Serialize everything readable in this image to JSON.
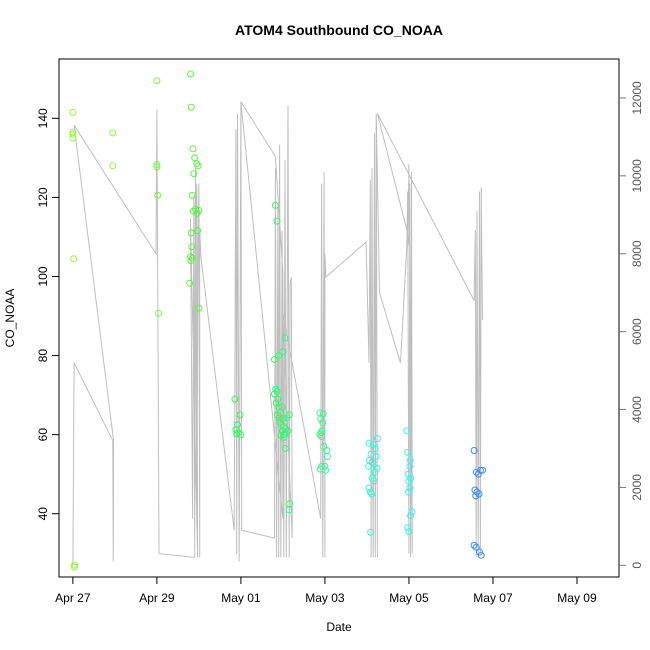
{
  "chart_data": {
    "type": "scatter",
    "title": "ATOM4 Southbound CO_NOAA",
    "xlabel": "Date",
    "ylabel": "CO_NOAA",
    "x_ticks": [
      "Apr 27",
      "Apr 29",
      "May 01",
      "May 03",
      "May 05",
      "May 07",
      "May 09"
    ],
    "y_ticks": [
      "40",
      "60",
      "80",
      "100",
      "120",
      "140"
    ],
    "y2_ticks": [
      "0",
      "2000",
      "4000",
      "6000",
      "8000",
      "10000",
      "12000"
    ],
    "xlim": [
      -0.33,
      13.0
    ],
    "ylim": [
      24,
      155
    ],
    "y2lim": [
      -300,
      13000
    ],
    "grid": false,
    "line_color": "#bebebe",
    "points": [
      {
        "x": 0.0,
        "y": 141.5,
        "c": "#9cf53b"
      },
      {
        "x": 0.0,
        "y": 136.5,
        "c": "#9cf53b"
      },
      {
        "x": 0.0,
        "y": 136.0,
        "c": "#9cf53b"
      },
      {
        "x": 0.0,
        "y": 135.0,
        "c": "#9cf53b"
      },
      {
        "x": 0.02,
        "y": 104.5,
        "c": "#9cf53b"
      },
      {
        "x": 0.04,
        "y": 27.0,
        "c": "#9cf53b"
      },
      {
        "x": 0.04,
        "y": 26.5,
        "c": "#9cf53b"
      },
      {
        "x": 0.95,
        "y": 136.3,
        "c": "#8ff53b"
      },
      {
        "x": 0.95,
        "y": 128.0,
        "c": "#8ff53b"
      },
      {
        "x": 2.0,
        "y": 149.5,
        "c": "#7af53b"
      },
      {
        "x": 2.0,
        "y": 128.3,
        "c": "#7af53b"
      },
      {
        "x": 2.0,
        "y": 127.7,
        "c": "#7af53b"
      },
      {
        "x": 2.02,
        "y": 120.5,
        "c": "#7af53b"
      },
      {
        "x": 2.04,
        "y": 90.7,
        "c": "#7af53b"
      },
      {
        "x": 2.8,
        "y": 151.2,
        "c": "#5af53b"
      },
      {
        "x": 2.82,
        "y": 142.8,
        "c": "#5af53b"
      },
      {
        "x": 2.86,
        "y": 132.3,
        "c": "#5af53b"
      },
      {
        "x": 2.9,
        "y": 130.0,
        "c": "#5af53b"
      },
      {
        "x": 2.95,
        "y": 128.5,
        "c": "#5af53b"
      },
      {
        "x": 2.98,
        "y": 128.0,
        "c": "#5af53b"
      },
      {
        "x": 2.88,
        "y": 126.0,
        "c": "#5af53b"
      },
      {
        "x": 2.84,
        "y": 120.5,
        "c": "#5af53b"
      },
      {
        "x": 2.92,
        "y": 117.0,
        "c": "#5af53b"
      },
      {
        "x": 2.87,
        "y": 116.5,
        "c": "#5af53b"
      },
      {
        "x": 2.96,
        "y": 116.0,
        "c": "#5af53b"
      },
      {
        "x": 3.0,
        "y": 116.7,
        "c": "#5af53b"
      },
      {
        "x": 2.82,
        "y": 111.0,
        "c": "#5af53b"
      },
      {
        "x": 2.97,
        "y": 111.6,
        "c": "#5af53b"
      },
      {
        "x": 2.83,
        "y": 107.5,
        "c": "#5af53b"
      },
      {
        "x": 2.8,
        "y": 105.0,
        "c": "#5af53b"
      },
      {
        "x": 2.84,
        "y": 104.6,
        "c": "#5af53b"
      },
      {
        "x": 2.81,
        "y": 104.0,
        "c": "#5af53b"
      },
      {
        "x": 2.78,
        "y": 98.3,
        "c": "#5af53b"
      },
      {
        "x": 3.0,
        "y": 92.0,
        "c": "#5af53b"
      },
      {
        "x": 3.86,
        "y": 69.0,
        "c": "#3bf55e"
      },
      {
        "x": 3.98,
        "y": 65.0,
        "c": "#3bf55e"
      },
      {
        "x": 3.92,
        "y": 62.5,
        "c": "#3bf55e"
      },
      {
        "x": 3.88,
        "y": 61.3,
        "c": "#3bf55e"
      },
      {
        "x": 3.95,
        "y": 60.5,
        "c": "#3bf55e"
      },
      {
        "x": 4.0,
        "y": 60.0,
        "c": "#3bf55e"
      },
      {
        "x": 3.9,
        "y": 60.2,
        "c": "#3bf55e"
      },
      {
        "x": 4.82,
        "y": 118.0,
        "c": "#3bf56a"
      },
      {
        "x": 4.86,
        "y": 114.0,
        "c": "#3bf56a"
      },
      {
        "x": 4.9,
        "y": 80.0,
        "c": "#3bf56a"
      },
      {
        "x": 4.8,
        "y": 79.0,
        "c": "#3bf56a"
      },
      {
        "x": 4.83,
        "y": 71.5,
        "c": "#3bf56a"
      },
      {
        "x": 4.86,
        "y": 71.0,
        "c": "#3bf56a"
      },
      {
        "x": 4.8,
        "y": 70.3,
        "c": "#3bf56a"
      },
      {
        "x": 4.88,
        "y": 69.0,
        "c": "#3bf56a"
      },
      {
        "x": 4.84,
        "y": 68.0,
        "c": "#3bf56a"
      },
      {
        "x": 4.9,
        "y": 67.0,
        "c": "#3bf56a"
      },
      {
        "x": 4.95,
        "y": 65.5,
        "c": "#3bf56a"
      },
      {
        "x": 4.87,
        "y": 65.0,
        "c": "#3bf56a"
      },
      {
        "x": 4.91,
        "y": 64.2,
        "c": "#3bf56a"
      },
      {
        "x": 5.0,
        "y": 64.0,
        "c": "#3bf56a"
      },
      {
        "x": 4.93,
        "y": 63.2,
        "c": "#3bf56a"
      },
      {
        "x": 4.97,
        "y": 62.5,
        "c": "#3bf56a"
      },
      {
        "x": 4.99,
        "y": 61.0,
        "c": "#3bf56a"
      },
      {
        "x": 5.02,
        "y": 60.0,
        "c": "#3bf56a"
      },
      {
        "x": 4.96,
        "y": 59.8,
        "c": "#3bf56a"
      },
      {
        "x": 5.05,
        "y": 84.5,
        "c": "#3bf57e"
      },
      {
        "x": 5.0,
        "y": 81.0,
        "c": "#3bf57e"
      },
      {
        "x": 4.98,
        "y": 67.0,
        "c": "#3bf57e"
      },
      {
        "x": 5.15,
        "y": 65.0,
        "c": "#3bf57e"
      },
      {
        "x": 5.1,
        "y": 64.3,
        "c": "#3bf57e"
      },
      {
        "x": 5.02,
        "y": 62.0,
        "c": "#3bf57e"
      },
      {
        "x": 5.06,
        "y": 61.5,
        "c": "#3bf57e"
      },
      {
        "x": 5.12,
        "y": 61.0,
        "c": "#3bf57e"
      },
      {
        "x": 5.08,
        "y": 60.5,
        "c": "#3bf57e"
      },
      {
        "x": 5.04,
        "y": 60.0,
        "c": "#3bf57e"
      },
      {
        "x": 5.01,
        "y": 59.3,
        "c": "#3bf57e"
      },
      {
        "x": 5.06,
        "y": 56.5,
        "c": "#3bf57e"
      },
      {
        "x": 5.16,
        "y": 42.5,
        "c": "#3bf57e"
      },
      {
        "x": 5.15,
        "y": 41.0,
        "c": "#3bf57e"
      },
      {
        "x": 5.88,
        "y": 65.5,
        "c": "#3bf58f"
      },
      {
        "x": 5.96,
        "y": 65.3,
        "c": "#3bf58f"
      },
      {
        "x": 5.9,
        "y": 64.0,
        "c": "#3bf58f"
      },
      {
        "x": 5.95,
        "y": 63.0,
        "c": "#3bf58f"
      },
      {
        "x": 5.93,
        "y": 61.0,
        "c": "#3bf58f"
      },
      {
        "x": 5.91,
        "y": 60.5,
        "c": "#3bf58f"
      },
      {
        "x": 5.88,
        "y": 60.0,
        "c": "#3bf58f"
      },
      {
        "x": 5.92,
        "y": 59.5,
        "c": "#3bf58f"
      },
      {
        "x": 5.97,
        "y": 57.0,
        "c": "#3bf58f"
      },
      {
        "x": 5.92,
        "y": 52.0,
        "c": "#3bf58f"
      },
      {
        "x": 5.89,
        "y": 51.3,
        "c": "#3bf58f"
      },
      {
        "x": 6.05,
        "y": 56.0,
        "c": "#3bf5a0"
      },
      {
        "x": 6.0,
        "y": 52.0,
        "c": "#3bf5a0"
      },
      {
        "x": 6.02,
        "y": 51.0,
        "c": "#3bf5a0"
      },
      {
        "x": 6.06,
        "y": 54.5,
        "c": "#3bf5a0"
      },
      {
        "x": 7.05,
        "y": 57.8,
        "c": "#3bf5d8"
      },
      {
        "x": 7.25,
        "y": 59.0,
        "c": "#3bf5d8"
      },
      {
        "x": 7.15,
        "y": 57.5,
        "c": "#3bf5d8"
      },
      {
        "x": 7.2,
        "y": 56.5,
        "c": "#3bf5d8"
      },
      {
        "x": 7.1,
        "y": 55.0,
        "c": "#3bf5d8"
      },
      {
        "x": 7.22,
        "y": 54.5,
        "c": "#3bf5d8"
      },
      {
        "x": 7.06,
        "y": 53.5,
        "c": "#3bf5d8"
      },
      {
        "x": 7.12,
        "y": 53.0,
        "c": "#3bf5d8"
      },
      {
        "x": 7.17,
        "y": 52.5,
        "c": "#3bf5d8"
      },
      {
        "x": 7.04,
        "y": 52.0,
        "c": "#3bf5d8"
      },
      {
        "x": 7.24,
        "y": 51.5,
        "c": "#3bf5d8"
      },
      {
        "x": 7.19,
        "y": 50.5,
        "c": "#3bf5d8"
      },
      {
        "x": 7.13,
        "y": 49.0,
        "c": "#3bf5d8"
      },
      {
        "x": 7.16,
        "y": 48.3,
        "c": "#3bf5d8"
      },
      {
        "x": 7.05,
        "y": 46.5,
        "c": "#3bf5d8"
      },
      {
        "x": 7.08,
        "y": 45.5,
        "c": "#3bf5d8"
      },
      {
        "x": 7.11,
        "y": 45.0,
        "c": "#3bf5d8"
      },
      {
        "x": 7.09,
        "y": 35.3,
        "c": "#3bf5d8"
      },
      {
        "x": 7.95,
        "y": 61.0,
        "c": "#3bf5f0"
      },
      {
        "x": 7.97,
        "y": 55.5,
        "c": "#3bf5f0"
      },
      {
        "x": 8.03,
        "y": 53.5,
        "c": "#3bf5f0"
      },
      {
        "x": 8.02,
        "y": 52.0,
        "c": "#3bf5f0"
      },
      {
        "x": 7.98,
        "y": 50.0,
        "c": "#3bf5f0"
      },
      {
        "x": 8.04,
        "y": 49.0,
        "c": "#3bf5f0"
      },
      {
        "x": 8.0,
        "y": 48.2,
        "c": "#3bf5f0"
      },
      {
        "x": 8.02,
        "y": 46.5,
        "c": "#3bf5f0"
      },
      {
        "x": 7.99,
        "y": 45.5,
        "c": "#3bf5f0"
      },
      {
        "x": 8.07,
        "y": 40.5,
        "c": "#3bf5f0"
      },
      {
        "x": 8.04,
        "y": 39.5,
        "c": "#3bf5f0"
      },
      {
        "x": 7.97,
        "y": 36.5,
        "c": "#3bf5f0"
      },
      {
        "x": 8.0,
        "y": 35.5,
        "c": "#3bf5f0"
      },
      {
        "x": 9.55,
        "y": 56.0,
        "c": "#3b8ff5"
      },
      {
        "x": 9.7,
        "y": 51.0,
        "c": "#3b8ff5"
      },
      {
        "x": 9.75,
        "y": 51.0,
        "c": "#3b8ff5"
      },
      {
        "x": 9.6,
        "y": 50.5,
        "c": "#3b8ff5"
      },
      {
        "x": 9.65,
        "y": 50.0,
        "c": "#3b8ff5"
      },
      {
        "x": 9.57,
        "y": 46.0,
        "c": "#3b8ff5"
      },
      {
        "x": 9.62,
        "y": 45.5,
        "c": "#3b8ff5"
      },
      {
        "x": 9.67,
        "y": 45.0,
        "c": "#3b8ff5"
      },
      {
        "x": 9.59,
        "y": 44.5,
        "c": "#3b8ff5"
      },
      {
        "x": 9.55,
        "y": 32.0,
        "c": "#3b8ff5"
      },
      {
        "x": 9.6,
        "y": 31.5,
        "c": "#3b8ff5"
      },
      {
        "x": 9.68,
        "y": 30.3,
        "c": "#3b8ff5"
      },
      {
        "x": 9.72,
        "y": 29.5,
        "c": "#3b8ff5"
      }
    ],
    "line": [
      [
        0.0,
        12
      ],
      [
        0.03,
        5200
      ],
      [
        0.95,
        3200
      ],
      [
        0.96,
        100
      ],
      [
        0.97,
        3200
      ],
      [
        0.03,
        11300
      ],
      [
        1.98,
        8000
      ],
      [
        2.0,
        11700
      ],
      [
        2.05,
        300
      ],
      [
        2.9,
        200
      ],
      [
        2.92,
        8200
      ],
      [
        2.95,
        9800
      ],
      [
        2.97,
        200
      ],
      [
        2.8,
        8900
      ],
      [
        2.85,
        1200
      ],
      [
        2.88,
        9500
      ],
      [
        2.9,
        700
      ],
      [
        2.92,
        10200
      ],
      [
        2.95,
        1000
      ],
      [
        2.98,
        8400
      ],
      [
        3.0,
        9800
      ],
      [
        3.02,
        200
      ],
      [
        3.02,
        8600
      ],
      [
        3.05,
        7900
      ],
      [
        3.84,
        900
      ],
      [
        3.88,
        11200
      ],
      [
        3.9,
        300
      ],
      [
        3.92,
        11600
      ],
      [
        3.96,
        100
      ],
      [
        4.0,
        11900
      ],
      [
        4.02,
        900
      ],
      [
        4.8,
        700
      ],
      [
        4.82,
        10200
      ],
      [
        4.85,
        200
      ],
      [
        4.88,
        9300
      ],
      [
        4.9,
        200
      ],
      [
        4.92,
        10800
      ],
      [
        4.95,
        200
      ],
      [
        4.98,
        8600
      ],
      [
        5.0,
        1200
      ],
      [
        4.0,
        11900
      ],
      [
        4.82,
        10500
      ],
      [
        5.0,
        7500
      ],
      [
        5.02,
        200
      ],
      [
        5.05,
        10400
      ],
      [
        5.08,
        200
      ],
      [
        5.12,
        11800
      ],
      [
        5.15,
        200
      ],
      [
        5.17,
        7200
      ],
      [
        5.2,
        7400
      ],
      [
        5.22,
        700
      ],
      [
        5.0,
        6500
      ],
      [
        5.9,
        1200
      ],
      [
        5.92,
        9800
      ],
      [
        5.95,
        200
      ],
      [
        5.98,
        10100
      ],
      [
        6.0,
        200
      ],
      [
        6.0,
        8000
      ],
      [
        6.02,
        7400
      ],
      [
        6.98,
        8300
      ],
      [
        7.05,
        5200
      ],
      [
        7.08,
        9900
      ],
      [
        7.1,
        200
      ],
      [
        7.12,
        10200
      ],
      [
        7.15,
        200
      ],
      [
        7.18,
        11100
      ],
      [
        7.2,
        200
      ],
      [
        7.22,
        11600
      ],
      [
        7.25,
        200
      ],
      [
        7.22,
        11600
      ],
      [
        7.3,
        7000
      ],
      [
        7.8,
        5200
      ],
      [
        7.95,
        8200
      ],
      [
        7.97,
        9600
      ],
      [
        8.0,
        300
      ],
      [
        8.02,
        9800
      ],
      [
        8.04,
        200
      ],
      [
        8.06,
        10100
      ],
      [
        8.08,
        300
      ],
      [
        8.0,
        10300
      ],
      [
        7.98,
        8200
      ],
      [
        8.0,
        8400
      ],
      [
        7.25,
        11600
      ],
      [
        9.55,
        6800
      ],
      [
        9.58,
        8600
      ],
      [
        9.6,
        200
      ],
      [
        9.62,
        9100
      ],
      [
        9.65,
        200
      ],
      [
        9.68,
        9600
      ],
      [
        9.7,
        300
      ],
      [
        9.72,
        9700
      ],
      [
        9.75,
        6300
      ]
    ]
  }
}
